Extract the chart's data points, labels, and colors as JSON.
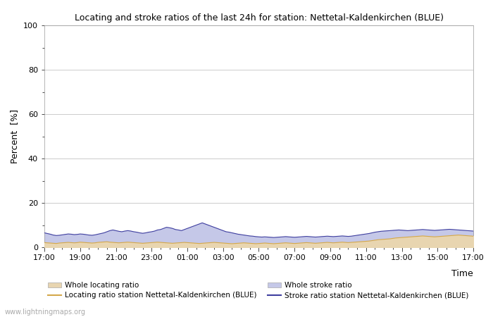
{
  "title": "Locating and stroke ratios of the last 24h for station: Nettetal-Kaldenkirchen (BLUE)",
  "xlabel": "Time",
  "ylabel": "Percent  [%]",
  "ylim": [
    0,
    100
  ],
  "yticks": [
    0,
    20,
    40,
    60,
    80,
    100
  ],
  "yticks_minor": [
    10,
    30,
    50,
    70,
    90
  ],
  "xtick_labels": [
    "17:00",
    "19:00",
    "21:00",
    "23:00",
    "01:00",
    "03:00",
    "05:00",
    "07:00",
    "09:00",
    "11:00",
    "13:00",
    "15:00",
    "17:00"
  ],
  "fill_locating_color": "#e8d5b0",
  "fill_stroke_color": "#c5c8e8",
  "line_locating_color": "#d4a84b",
  "line_stroke_color": "#4040a0",
  "background_color": "#ffffff",
  "grid_color": "#cccccc",
  "watermark": "www.lightningmaps.org",
  "legend_labels": [
    "Whole locating ratio",
    "Whole stroke ratio",
    "Locating ratio station Nettetal-Kaldenkirchen (BLUE)",
    "Stroke ratio station Nettetal-Kaldenkirchen (BLUE)"
  ],
  "n_points": 145,
  "locating_fill_data": [
    2.1,
    2.0,
    1.9,
    1.8,
    1.7,
    1.9,
    2.0,
    2.1,
    2.2,
    2.1,
    2.0,
    2.1,
    2.3,
    2.2,
    2.1,
    2.0,
    1.9,
    2.0,
    2.2,
    2.3,
    2.4,
    2.5,
    2.3,
    2.2,
    2.1,
    2.0,
    2.1,
    2.2,
    2.3,
    2.2,
    2.1,
    2.0,
    1.9,
    1.8,
    1.9,
    2.0,
    2.1,
    2.2,
    2.3,
    2.2,
    2.1,
    2.0,
    1.9,
    1.8,
    1.9,
    2.0,
    2.1,
    2.2,
    2.1,
    2.0,
    1.9,
    1.8,
    1.7,
    1.8,
    1.9,
    2.0,
    2.1,
    2.2,
    2.1,
    2.0,
    1.9,
    1.8,
    1.7,
    1.6,
    1.7,
    1.8,
    1.9,
    2.0,
    1.9,
    1.8,
    1.7,
    1.6,
    1.7,
    1.8,
    1.9,
    1.8,
    1.7,
    1.6,
    1.7,
    1.8,
    1.9,
    2.0,
    1.9,
    1.8,
    1.7,
    1.8,
    1.9,
    2.0,
    2.1,
    2.0,
    1.9,
    1.8,
    1.9,
    2.0,
    2.1,
    2.2,
    2.1,
    2.0,
    2.1,
    2.2,
    2.3,
    2.2,
    2.1,
    2.2,
    2.3,
    2.4,
    2.5,
    2.6,
    2.7,
    2.8,
    3.0,
    3.2,
    3.4,
    3.5,
    3.6,
    3.7,
    3.8,
    4.0,
    4.2,
    4.3,
    4.4,
    4.5,
    4.6,
    4.7,
    4.8,
    4.9,
    5.0,
    5.1,
    5.0,
    4.9,
    4.8,
    4.7,
    4.8,
    4.9,
    5.0,
    5.1,
    5.2,
    5.3,
    5.4,
    5.5,
    5.4,
    5.3,
    5.2,
    5.1,
    5.0
  ],
  "stroke_fill_data": [
    6.5,
    6.2,
    5.9,
    5.5,
    5.3,
    5.4,
    5.6,
    5.8,
    6.0,
    5.9,
    5.7,
    5.8,
    6.0,
    5.9,
    5.7,
    5.5,
    5.4,
    5.6,
    5.9,
    6.2,
    6.5,
    7.0,
    7.5,
    7.8,
    7.5,
    7.2,
    7.0,
    7.3,
    7.5,
    7.3,
    7.0,
    6.8,
    6.5,
    6.3,
    6.5,
    6.8,
    7.0,
    7.3,
    7.8,
    8.0,
    8.5,
    9.0,
    8.8,
    8.5,
    8.0,
    7.8,
    7.5,
    8.0,
    8.5,
    9.0,
    9.5,
    10.0,
    10.5,
    11.0,
    10.5,
    10.0,
    9.5,
    9.0,
    8.5,
    8.0,
    7.5,
    7.0,
    6.8,
    6.5,
    6.2,
    5.9,
    5.7,
    5.5,
    5.3,
    5.1,
    5.0,
    4.8,
    4.7,
    4.6,
    4.7,
    4.6,
    4.5,
    4.4,
    4.5,
    4.6,
    4.7,
    4.8,
    4.7,
    4.6,
    4.5,
    4.6,
    4.7,
    4.8,
    4.9,
    4.8,
    4.7,
    4.6,
    4.7,
    4.8,
    4.9,
    5.0,
    4.9,
    4.8,
    4.9,
    5.0,
    5.1,
    5.0,
    4.9,
    5.0,
    5.2,
    5.4,
    5.6,
    5.8,
    6.0,
    6.2,
    6.5,
    6.8,
    7.0,
    7.2,
    7.3,
    7.4,
    7.5,
    7.6,
    7.7,
    7.8,
    7.7,
    7.6,
    7.5,
    7.6,
    7.7,
    7.8,
    7.9,
    8.0,
    7.9,
    7.8,
    7.7,
    7.6,
    7.7,
    7.8,
    7.9,
    8.0,
    8.1,
    8.0,
    7.9,
    7.8,
    7.7,
    7.6,
    7.5,
    7.4,
    7.3
  ]
}
